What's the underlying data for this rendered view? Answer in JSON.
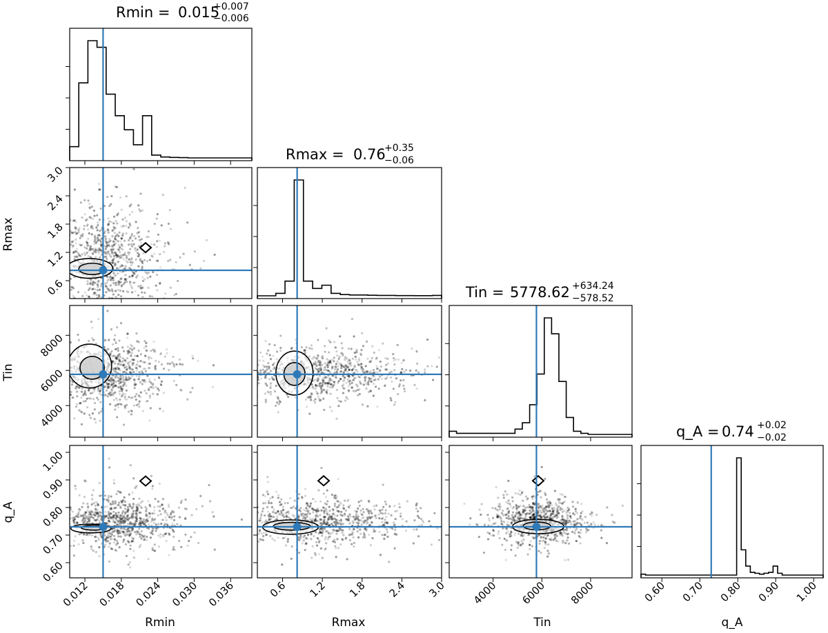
{
  "chart_data": {
    "type": "corner",
    "parameters": [
      "Rmin",
      "Rmax",
      "Tin",
      "q_A"
    ],
    "truths": [
      0.015,
      0.82,
      5778.62,
      0.73
    ],
    "titles": [
      {
        "param": "Rmin",
        "label": "Rmin = ",
        "value": "0.015",
        "plus": "+0.007",
        "minus": "−0.006"
      },
      {
        "param": "Rmax",
        "label": "Rmax =",
        "value": "0.76",
        "plus": "+0.35",
        "minus": "−0.06"
      },
      {
        "param": "Tin",
        "label": "Tin = ",
        "value": "5778.62",
        "plus": "+634.24",
        "minus": "−578.52"
      },
      {
        "param": "q_A",
        "label": "q_A =",
        "value": "0.74",
        "plus": "+0.02",
        "minus": "−0.02"
      }
    ],
    "axis_ranges": {
      "Rmin": [
        0.0095,
        0.0395
      ],
      "Rmax": [
        0.22,
        3.0
      ],
      "Tin": [
        2200,
        9700
      ],
      "q_A": [
        0.545,
        1.025
      ]
    },
    "ticks": {
      "Rmin": [
        "0.012",
        "0.018",
        "0.024",
        "0.030",
        "0.036"
      ],
      "Rmax": [
        "0.6",
        "1.2",
        "1.8",
        "2.4",
        "3.0"
      ],
      "Tin": [
        "4000",
        "6000",
        "8000"
      ],
      "Tin_y": [
        "4000",
        "6000",
        "8000"
      ],
      "q_A": [
        "0.60",
        "0.70",
        "0.80",
        "0.90",
        "1.00"
      ],
      "q_A_y": [
        "0.60",
        "0.70",
        "0.80",
        "0.90",
        "1.00"
      ]
    },
    "histograms": {
      "Rmin": {
        "start": 0.0095,
        "end": 0.0395,
        "counts": [
          12,
          80,
          125,
          118,
          68,
          45,
          30,
          14,
          45,
          3,
          1,
          0.5,
          0.3,
          0,
          0,
          0,
          0,
          0,
          0,
          0
        ]
      },
      "Rmax": {
        "start": 0.22,
        "end": 3.0,
        "counts": [
          0,
          0,
          3,
          18,
          142,
          18,
          9,
          13,
          3,
          1.5,
          1,
          1,
          0.7,
          0.5,
          0.5,
          0.3,
          0.3,
          0.2,
          0.2,
          0.5
        ]
      },
      "Tin": {
        "start": 2200,
        "end": 9700,
        "counts": [
          3,
          1,
          1,
          1,
          1,
          1,
          1,
          1,
          1,
          5,
          11,
          28,
          57,
          110,
          95,
          50,
          16,
          3,
          1,
          0,
          0,
          0,
          0,
          0,
          0
        ]
      },
      "q_A": {
        "start": 0.545,
        "end": 1.025,
        "counts": [
          1,
          0,
          0,
          0,
          0,
          0,
          0,
          0,
          0,
          0,
          0,
          0,
          0,
          0,
          0,
          0,
          0,
          0,
          0,
          0,
          0,
          130,
          28,
          10,
          3,
          2,
          1,
          2,
          3,
          10,
          2,
          0,
          0,
          0,
          0,
          0,
          0,
          0,
          0,
          0
        ]
      }
    },
    "contours": {
      "q_A__Rmin": [
        [
          0.013,
          0.724,
          0.0033,
          0.016
        ],
        [
          0.0135,
          0.727,
          0.0021,
          0.009
        ]
      ],
      "q_A__Rmax": [
        [
          0.72,
          0.729,
          0.42,
          0.026
        ],
        [
          0.74,
          0.732,
          0.28,
          0.014
        ]
      ],
      "q_A__Tin": [
        [
          5850,
          0.731,
          1050,
          0.026
        ],
        [
          5800,
          0.733,
          560,
          0.014
        ]
      ],
      "Tin__Rmin": [
        [
          0.0128,
          6250,
          0.0036,
          1250
        ],
        [
          0.0132,
          6150,
          0.002,
          650
        ]
      ],
      "Tin__Rmax": [
        [
          0.78,
          5850,
          0.28,
          1250
        ],
        [
          0.78,
          5800,
          0.16,
          650
        ]
      ],
      "Rmax__Rmin": [
        [
          0.0128,
          0.86,
          0.0038,
          0.21
        ],
        [
          0.0132,
          0.85,
          0.0022,
          0.12
        ]
      ]
    },
    "markers": [
      {
        "panel": "Rmax__Rmin",
        "x": 0.022,
        "y": 1.3
      },
      {
        "panel": "q_A__Rmin",
        "x": 0.022,
        "y": 0.896
      },
      {
        "panel": "q_A__Rmax",
        "x": 1.22,
        "y": 0.897
      },
      {
        "panel": "q_A__Tin",
        "x": 5850,
        "y": 0.897
      }
    ],
    "scatter": [
      {
        "panel": "Rmax__Rmin",
        "n": 900,
        "cx": 0.0155,
        "cy": 1.0,
        "sx": 0.0045,
        "sy": 0.55
      },
      {
        "panel": "Tin__Rmin",
        "n": 900,
        "cx": 0.0155,
        "cy": 5800,
        "sx": 0.0045,
        "sy": 900
      },
      {
        "panel": "Tin__Rmax",
        "n": 900,
        "cx": 1.1,
        "cy": 5800,
        "sx": 0.7,
        "sy": 700
      },
      {
        "panel": "q_A__Rmin",
        "n": 900,
        "cx": 0.017,
        "cy": 0.75,
        "sx": 0.005,
        "sy": 0.045
      },
      {
        "panel": "q_A__Rmax",
        "n": 900,
        "cx": 1.1,
        "cy": 0.75,
        "sx": 0.7,
        "sy": 0.04
      },
      {
        "panel": "q_A__Tin",
        "n": 900,
        "cx": 5900,
        "cy": 0.75,
        "sx": 900,
        "sy": 0.04
      }
    ]
  },
  "colors": {
    "truth": "#2e7ab8",
    "hist": "#000000",
    "scatter": "#000000",
    "contour_fill": "#cfcfcf"
  }
}
